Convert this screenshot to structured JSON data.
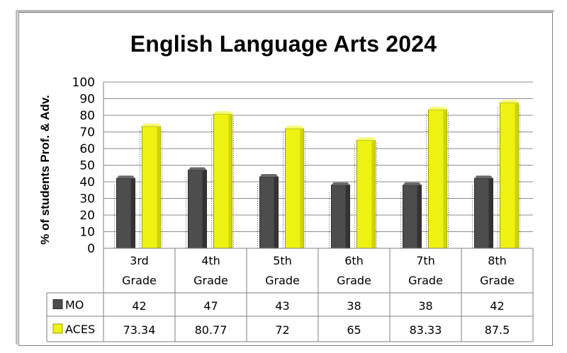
{
  "chart_data": {
    "type": "bar",
    "title": "English Language Arts 2024",
    "ylabel": "% of students Prof. & Adv.",
    "xlabel": "",
    "ylim": [
      0,
      100
    ],
    "yticks": [
      0,
      10,
      20,
      30,
      40,
      50,
      60,
      70,
      80,
      90,
      100
    ],
    "grid": true,
    "categories": [
      [
        "3rd",
        "Grade"
      ],
      [
        "4th",
        "Grade"
      ],
      [
        "5th",
        "Grade"
      ],
      [
        "6th",
        "Grade"
      ],
      [
        "7th",
        "Grade"
      ],
      [
        "8th",
        "Grade"
      ]
    ],
    "series": [
      {
        "name": "MO",
        "color": "#4d4d4d",
        "values": [
          42,
          47,
          43,
          38,
          38,
          42
        ],
        "labels": [
          "42",
          "47",
          "43",
          "38",
          "38",
          "42"
        ]
      },
      {
        "name": "ACES",
        "color": "#eef213",
        "values": [
          73.34,
          80.77,
          72,
          65,
          83.33,
          87.5
        ],
        "labels": [
          "73.34",
          "80.77",
          "72",
          "65",
          "83.33",
          "87.5"
        ]
      }
    ],
    "legend": "data-table"
  }
}
